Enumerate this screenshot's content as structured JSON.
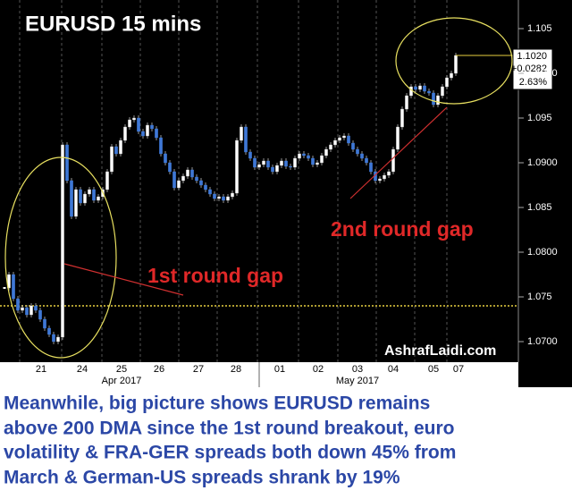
{
  "chart_data": {
    "type": "candlestick",
    "title": "EURUSD 15 mins",
    "series": [
      {
        "name": "EURUSD",
        "color": "#3f78d6",
        "up_color": "#ffffff",
        "values": [
          1.076,
          1.0775,
          1.0748,
          1.0735,
          1.0738,
          1.073,
          1.074,
          1.0735,
          1.0725,
          1.0715,
          1.0708,
          1.07,
          1.0705,
          1.092,
          1.088,
          1.084,
          1.087,
          1.0855,
          1.0865,
          1.087,
          1.0858,
          1.0862,
          1.087,
          1.089,
          1.0918,
          1.091,
          1.0925,
          1.094,
          1.0948,
          1.095,
          1.0935,
          1.093,
          1.0942,
          1.0938,
          1.0928,
          1.091,
          1.09,
          1.089,
          1.0872,
          1.088,
          1.0885,
          1.0892,
          1.0884,
          1.088,
          1.0875,
          1.087,
          1.0865,
          1.086,
          1.0862,
          1.0858,
          1.0862,
          1.0866,
          1.0925,
          1.094,
          1.0912,
          1.0905,
          1.0895,
          1.0898,
          1.0902,
          1.0895,
          1.089,
          1.0897,
          1.0902,
          1.0896,
          1.0895,
          1.0905,
          1.091,
          1.0908,
          1.0905,
          1.0898,
          1.09,
          1.0908,
          1.0915,
          1.092,
          1.0925,
          1.0928,
          1.093,
          1.0922,
          1.0915,
          1.091,
          1.0905,
          1.09,
          1.089,
          1.088,
          1.0882,
          1.0886,
          1.089,
          1.0915,
          1.094,
          1.096,
          1.0975,
          1.0985,
          1.0982,
          1.0986,
          1.098,
          1.0978,
          1.0965,
          1.0975,
          1.0985,
          1.0995,
          1.1,
          1.102
        ]
      }
    ],
    "ylim": [
      1.0677,
      1.1082
    ],
    "yticks": [
      {
        "value": 1.07,
        "label": "1.0700"
      },
      1.075,
      {
        "value": 1.08,
        "label": "1.0800"
      },
      1.085,
      {
        "value": 1.09,
        "label": "1.0900"
      },
      1.095,
      {
        "value": 1.1,
        "label": "1.1000"
      },
      1.105
    ],
    "reference_line": 1.074,
    "x_tick_labels": [
      "21",
      "24",
      "25",
      "26",
      "27",
      "28",
      "01",
      "02",
      "03",
      "04",
      "05",
      "07"
    ],
    "month_labels": [
      "Apr 2017",
      "May 2017"
    ],
    "price_box": [
      "1.1020",
      "+0.0282",
      "2.63%"
    ],
    "annotations": [
      "2nd round gap",
      "1st round gap"
    ],
    "watermark": "AshrafLaidi.com"
  },
  "caption": [
    "Meanwhile, big picture shows EURUSD remains",
    "above 200 DMA since the 1st round breakout, euro",
    "volatility & FRA-GER spreads both down 45% from",
    "March & German-US spreads shrank by 19%"
  ]
}
